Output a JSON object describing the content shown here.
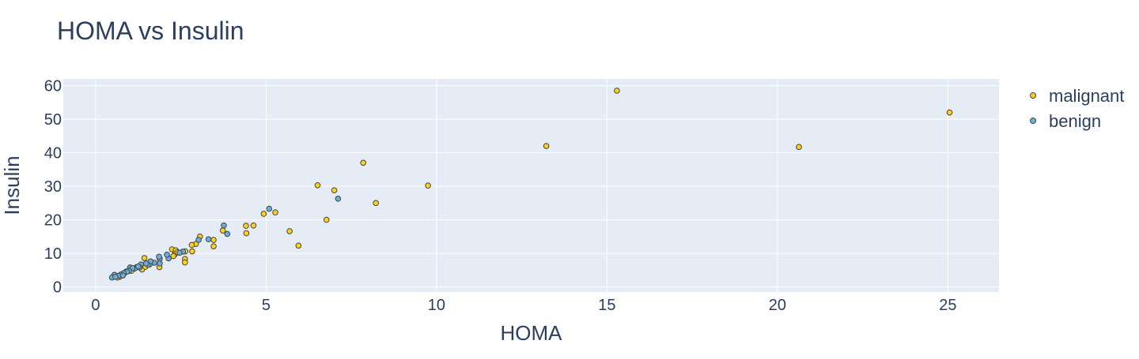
{
  "chart_data": {
    "type": "scatter",
    "title": "HOMA vs Insulin",
    "xlabel": "HOMA",
    "ylabel": "Insulin",
    "xlim": [
      -0.95,
      26.5
    ],
    "ylim": [
      -1.5,
      62
    ],
    "xticks": [
      0,
      5,
      10,
      15,
      20,
      25
    ],
    "yticks": [
      0,
      10,
      20,
      30,
      40,
      50,
      60
    ],
    "grid": true,
    "legend_position": "top-right",
    "background_color": "#e5ecf6",
    "series": [
      {
        "name": "malignant",
        "color": "#ffd21a",
        "points": [
          [
            15.29,
            58.5
          ],
          [
            25.05,
            52.0
          ],
          [
            13.22,
            42.0
          ],
          [
            20.63,
            41.7
          ],
          [
            7.85,
            37.0
          ],
          [
            6.51,
            30.3
          ],
          [
            9.75,
            30.2
          ],
          [
            7.0,
            28.8
          ],
          [
            8.22,
            25.0
          ],
          [
            6.77,
            20.0
          ],
          [
            4.93,
            21.8
          ],
          [
            5.27,
            22.2
          ],
          [
            4.63,
            18.3
          ],
          [
            4.41,
            18.2
          ],
          [
            4.42,
            16.0
          ],
          [
            5.69,
            16.6
          ],
          [
            5.95,
            12.3
          ],
          [
            3.73,
            16.8
          ],
          [
            3.46,
            14.0
          ],
          [
            3.46,
            12.1
          ],
          [
            3.06,
            15.0
          ],
          [
            2.94,
            12.8
          ],
          [
            2.82,
            12.5
          ],
          [
            2.83,
            10.6
          ],
          [
            2.63,
            10.6
          ],
          [
            2.62,
            8.3
          ],
          [
            2.62,
            7.3
          ],
          [
            2.24,
            11.2
          ],
          [
            2.35,
            10.9
          ],
          [
            2.32,
            9.7
          ],
          [
            2.28,
            9.2
          ],
          [
            2.4,
            10.3
          ],
          [
            1.43,
            8.6
          ],
          [
            1.87,
            5.9
          ],
          [
            1.58,
            6.7
          ],
          [
            1.2,
            5.9
          ],
          [
            1.1,
            5.3
          ],
          [
            1.05,
            4.8
          ],
          [
            1.36,
            5.2
          ],
          [
            1.46,
            6.0
          ],
          [
            0.85,
            4.2
          ],
          [
            0.78,
            3.8
          ],
          [
            0.7,
            3.0
          ],
          [
            0.64,
            2.8
          ],
          [
            0.9,
            4.6
          ]
        ]
      },
      {
        "name": "benign",
        "color": "#6baed6",
        "points": [
          [
            5.09,
            23.3
          ],
          [
            7.11,
            26.3
          ],
          [
            3.76,
            18.3
          ],
          [
            3.86,
            15.8
          ],
          [
            3.31,
            14.2
          ],
          [
            3.02,
            14.0
          ],
          [
            2.56,
            10.5
          ],
          [
            2.46,
            10.2
          ],
          [
            2.14,
            8.5
          ],
          [
            2.09,
            9.6
          ],
          [
            1.88,
            8.4
          ],
          [
            1.86,
            9.0
          ],
          [
            1.88,
            7.0
          ],
          [
            1.72,
            7.2
          ],
          [
            1.61,
            7.6
          ],
          [
            1.53,
            6.6
          ],
          [
            1.48,
            7.0
          ],
          [
            1.33,
            6.7
          ],
          [
            1.29,
            5.8
          ],
          [
            1.15,
            5.5
          ],
          [
            1.01,
            5.8
          ],
          [
            1.08,
            5.6
          ],
          [
            0.98,
            4.8
          ],
          [
            0.92,
            4.5
          ],
          [
            0.82,
            4.1
          ],
          [
            0.74,
            3.7
          ],
          [
            0.67,
            3.3
          ],
          [
            0.55,
            3.6
          ],
          [
            0.48,
            2.8
          ],
          [
            0.58,
            3.0
          ],
          [
            0.8,
            3.4
          ],
          [
            1.25,
            6.1
          ]
        ]
      }
    ]
  }
}
